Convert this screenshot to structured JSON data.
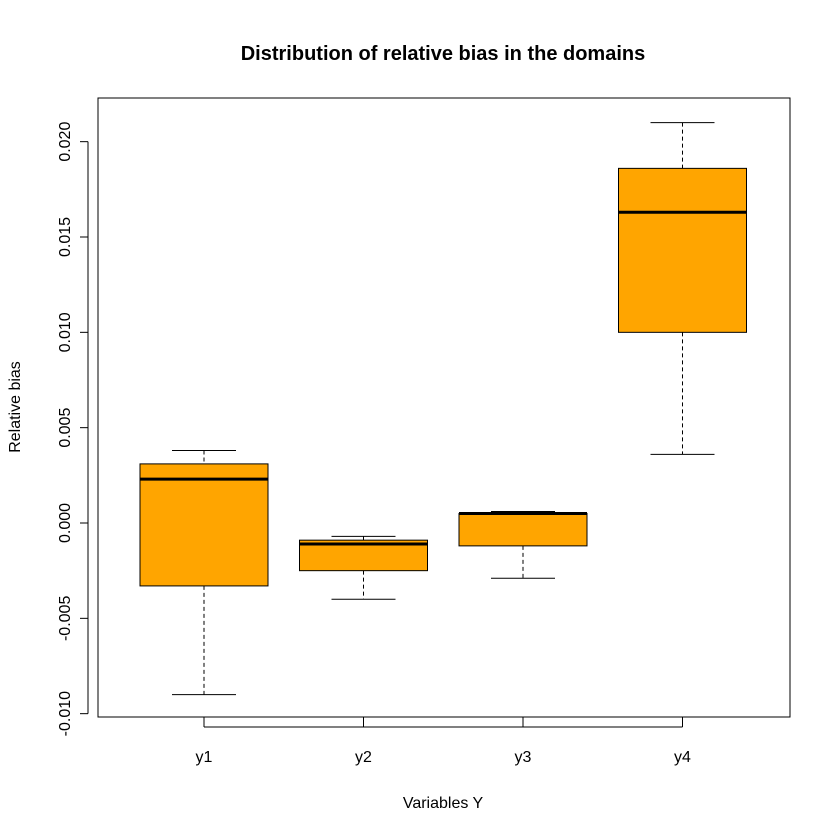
{
  "chart_data": {
    "type": "boxplot",
    "title": "Distribution of relative bias in the domains",
    "xlabel": "Variables Y",
    "ylabel": "Relative bias",
    "ylim": [
      -0.0105,
      0.022
    ],
    "yticks": [
      "-0.010",
      "-0.005",
      "0.000",
      "0.005",
      "0.010",
      "0.015",
      "0.020"
    ],
    "ytick_values": [
      -0.01,
      -0.005,
      0.0,
      0.005,
      0.01,
      0.015,
      0.02
    ],
    "categories": [
      "y1",
      "y2",
      "y3",
      "y4"
    ],
    "boxes": [
      {
        "category": "y1",
        "min": -0.009,
        "q1": -0.0033,
        "median": 0.0023,
        "q3": 0.0031,
        "max": 0.0038
      },
      {
        "category": "y2",
        "min": -0.004,
        "q1": -0.0025,
        "median": -0.0011,
        "q3": -0.0009,
        "max": -0.0007
      },
      {
        "category": "y3",
        "min": -0.0029,
        "q1": -0.0012,
        "median": 0.0005,
        "q3": 0.0005,
        "max": 0.0006
      },
      {
        "category": "y4",
        "min": 0.0036,
        "q1": 0.01,
        "median": 0.0163,
        "q3": 0.0186,
        "max": 0.021
      }
    ],
    "box_color": "#FFA500",
    "grid": false,
    "legend": "none"
  }
}
